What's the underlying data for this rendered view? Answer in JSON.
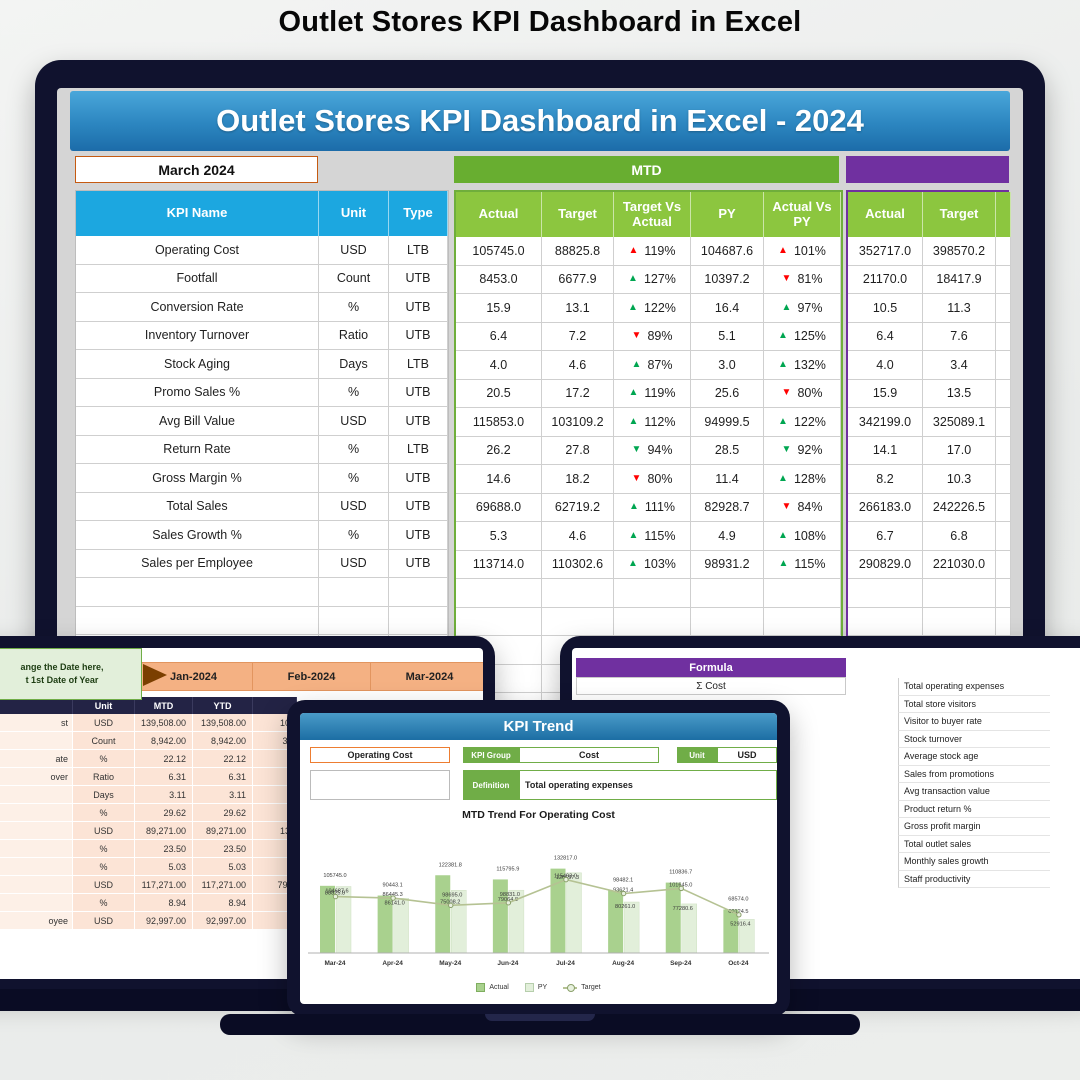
{
  "page": {
    "title": "Outlet Stores KPI Dashboard in Excel"
  },
  "colors": {
    "arrow_green": "#00A651",
    "arrow_red": "#FF0000",
    "accent_blue": "#1CA7E0",
    "accent_lime": "#8CC63F",
    "accent_green": "#70AD47",
    "accent_purple": "#7030A0",
    "accent_orange": "#ED7D31"
  },
  "dashboard": {
    "banner": "Outlet Stores KPI Dashboard in Excel - 2024",
    "date": "March 2024",
    "mtd_label": "MTD",
    "left_headers": [
      "KPI Name",
      "Unit",
      "Type"
    ],
    "mtd_headers": [
      "Actual",
      "Target",
      "Target Vs Actual",
      "PY",
      "Actual Vs PY"
    ],
    "right_headers": [
      "Actual",
      "Target"
    ],
    "rows": [
      {
        "name": "Operating Cost",
        "unit": "USD",
        "type": "LTB",
        "actual": "105745.0",
        "target": "88825.8",
        "tva_dir": "up",
        "tva_color": "red",
        "tva": "119%",
        "py": "104687.6",
        "avp_dir": "up",
        "avp_color": "red",
        "avp": "101%",
        "actual2": "352717.0",
        "target2": "398570.2"
      },
      {
        "name": "Footfall",
        "unit": "Count",
        "type": "UTB",
        "actual": "8453.0",
        "target": "6677.9",
        "tva_dir": "up",
        "tva_color": "green",
        "tva": "127%",
        "py": "10397.2",
        "avp_dir": "down",
        "avp_color": "red",
        "avp": "81%",
        "actual2": "21170.0",
        "target2": "18417.9"
      },
      {
        "name": "Conversion Rate",
        "unit": "%",
        "type": "UTB",
        "actual": "15.9",
        "target": "13.1",
        "tva_dir": "up",
        "tva_color": "green",
        "tva": "122%",
        "py": "16.4",
        "avp_dir": "up",
        "avp_color": "green",
        "avp": "97%",
        "actual2": "10.5",
        "target2": "11.3"
      },
      {
        "name": "Inventory Turnover",
        "unit": "Ratio",
        "type": "UTB",
        "actual": "6.4",
        "target": "7.2",
        "tva_dir": "down",
        "tva_color": "red",
        "tva": "89%",
        "py": "5.1",
        "avp_dir": "up",
        "avp_color": "green",
        "avp": "125%",
        "actual2": "6.4",
        "target2": "7.6"
      },
      {
        "name": "Stock Aging",
        "unit": "Days",
        "type": "LTB",
        "actual": "4.0",
        "target": "4.6",
        "tva_dir": "up",
        "tva_color": "green",
        "tva": "87%",
        "py": "3.0",
        "avp_dir": "up",
        "avp_color": "green",
        "avp": "132%",
        "actual2": "4.0",
        "target2": "3.4"
      },
      {
        "name": "Promo Sales %",
        "unit": "%",
        "type": "UTB",
        "actual": "20.5",
        "target": "17.2",
        "tva_dir": "up",
        "tva_color": "green",
        "tva": "119%",
        "py": "25.6",
        "avp_dir": "down",
        "avp_color": "red",
        "avp": "80%",
        "actual2": "15.9",
        "target2": "13.5"
      },
      {
        "name": "Avg Bill Value",
        "unit": "USD",
        "type": "UTB",
        "actual": "115853.0",
        "target": "103109.2",
        "tva_dir": "up",
        "tva_color": "green",
        "tva": "112%",
        "py": "94999.5",
        "avp_dir": "up",
        "avp_color": "green",
        "avp": "122%",
        "actual2": "342199.0",
        "target2": "325089.1"
      },
      {
        "name": "Return Rate",
        "unit": "%",
        "type": "LTB",
        "actual": "26.2",
        "target": "27.8",
        "tva_dir": "down",
        "tva_color": "green",
        "tva": "94%",
        "py": "28.5",
        "avp_dir": "down",
        "avp_color": "green",
        "avp": "92%",
        "actual2": "14.1",
        "target2": "17.0"
      },
      {
        "name": "Gross Margin %",
        "unit": "%",
        "type": "UTB",
        "actual": "14.6",
        "target": "18.2",
        "tva_dir": "down",
        "tva_color": "red",
        "tva": "80%",
        "py": "11.4",
        "avp_dir": "up",
        "avp_color": "green",
        "avp": "128%",
        "actual2": "8.2",
        "target2": "10.3"
      },
      {
        "name": "Total Sales",
        "unit": "USD",
        "type": "UTB",
        "actual": "69688.0",
        "target": "62719.2",
        "tva_dir": "up",
        "tva_color": "green",
        "tva": "111%",
        "py": "82928.7",
        "avp_dir": "down",
        "avp_color": "red",
        "avp": "84%",
        "actual2": "266183.0",
        "target2": "242226.5"
      },
      {
        "name": "Sales Growth %",
        "unit": "%",
        "type": "UTB",
        "actual": "5.3",
        "target": "4.6",
        "tva_dir": "up",
        "tva_color": "green",
        "tva": "115%",
        "py": "4.9",
        "avp_dir": "up",
        "avp_color": "green",
        "avp": "108%",
        "actual2": "6.7",
        "target2": "6.8"
      },
      {
        "name": "Sales per Employee",
        "unit": "USD",
        "type": "UTB",
        "actual": "113714.0",
        "target": "110302.6",
        "tva_dir": "up",
        "tva_color": "green",
        "tva": "103%",
        "py": "98931.2",
        "avp_dir": "up",
        "avp_color": "green",
        "avp": "115%",
        "actual2": "290829.0",
        "target2": "221030.0"
      }
    ]
  },
  "monthly": {
    "note_line1": "ange the Date here,",
    "note_line2": "t 1st Date of Year",
    "months": [
      "Jan-2024",
      "Feb-2024",
      "Mar-2024"
    ],
    "headers": [
      "Unit",
      "MTD",
      "YTD"
    ],
    "rows": [
      {
        "label": "st",
        "unit": "USD",
        "mtd": "139,508.00",
        "ytd": "139,508.00",
        "next": "10"
      },
      {
        "label": "",
        "unit": "Count",
        "mtd": "8,942.00",
        "ytd": "8,942.00",
        "next": "3,"
      },
      {
        "label": "ate",
        "unit": "%",
        "mtd": "22.12",
        "ytd": "22.12",
        "next": ""
      },
      {
        "label": "over",
        "unit": "Ratio",
        "mtd": "6.31",
        "ytd": "6.31",
        "next": ""
      },
      {
        "label": "",
        "unit": "Days",
        "mtd": "3.11",
        "ytd": "3.11",
        "next": ""
      },
      {
        "label": "",
        "unit": "%",
        "mtd": "29.62",
        "ytd": "29.62",
        "next": ""
      },
      {
        "label": "",
        "unit": "USD",
        "mtd": "89,271.00",
        "ytd": "89,271.00",
        "next": "13"
      },
      {
        "label": "",
        "unit": "%",
        "mtd": "23.50",
        "ytd": "23.50",
        "next": ""
      },
      {
        "label": "",
        "unit": "%",
        "mtd": "5.03",
        "ytd": "5.03",
        "next": ""
      },
      {
        "label": "",
        "unit": "USD",
        "mtd": "117,271.00",
        "ytd": "117,271.00",
        "next": "79,"
      },
      {
        "label": "",
        "unit": "%",
        "mtd": "8.94",
        "ytd": "8.94",
        "next": ""
      },
      {
        "label": "oyee",
        "unit": "USD",
        "mtd": "92,997.00",
        "ytd": "92,997.00",
        "next": ""
      }
    ]
  },
  "formula": {
    "header": "Formula",
    "cell": "Σ Cost",
    "descriptions": [
      "Total operating expenses",
      "Total store visitors",
      "Visitor to buyer rate",
      "Stock turnover",
      "Average stock age",
      "Sales from promotions",
      "Avg transaction value",
      "Product return %",
      "Gross profit margin",
      "Total outlet sales",
      "Monthly sales growth",
      "Staff productivity"
    ]
  },
  "trend": {
    "header": "KPI Trend",
    "kpi_name": "Operating Cost",
    "group_label": "KPI Group",
    "group_value": "Cost",
    "unit_label": "Unit",
    "unit_value": "USD",
    "definition_label": "Definition",
    "definition_value": "Total operating expenses",
    "chart_title": "MTD Trend For Operating Cost",
    "legend": [
      "Actual",
      "PY",
      "Target"
    ]
  },
  "chart_data": {
    "type": "bar",
    "title": "MTD Trend For Operating Cost",
    "categories": [
      "Mar-24",
      "Apr-24",
      "May-24",
      "Jun-24",
      "Jul-24",
      "Aug-24",
      "Sep-24",
      "Oct-24"
    ],
    "series": [
      {
        "name": "Actual",
        "values": [
          105745.0,
          90443.1,
          122381.8,
          115795.9,
          132817.0,
          98482.1,
          110836.7,
          68574.0
        ]
      },
      {
        "name": "PY",
        "values": [
          104687.6,
          86141.0,
          98695.0,
          98831.0,
          126197.3,
          80261.0,
          77280.6,
          52916.4
        ]
      },
      {
        "name": "Target",
        "values": [
          88825.8,
          86445.3,
          75008.2,
          79064.8,
          115493.0,
          93621.4,
          101645.0,
          60124.5
        ]
      }
    ],
    "ylim": [
      0,
      170000
    ],
    "legend_position": "bottom",
    "grid": false
  }
}
